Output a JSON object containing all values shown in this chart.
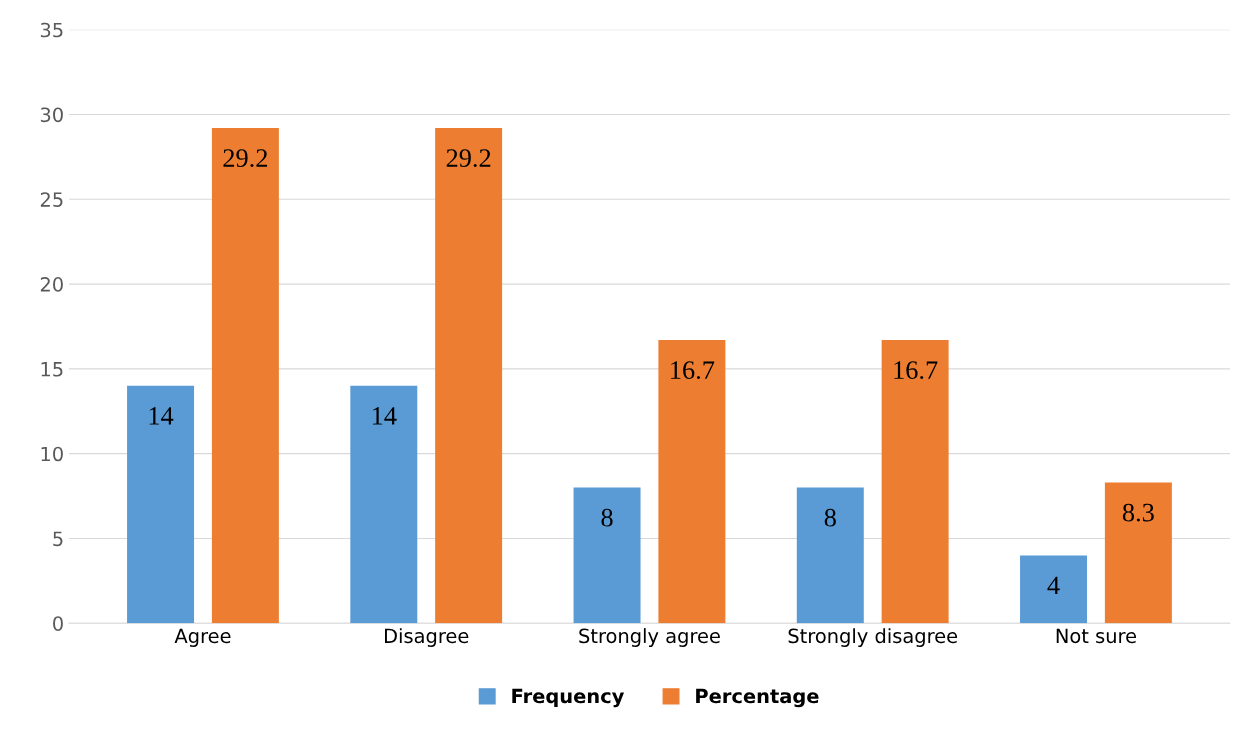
{
  "chart_data": {
    "type": "bar",
    "categories": [
      "Agree",
      "Disagree",
      "Strongly agree",
      "Strongly disagree",
      "Not sure"
    ],
    "series": [
      {
        "name": "Frequency",
        "color": "#5b9bd5",
        "values": [
          14,
          14,
          8,
          8,
          4
        ]
      },
      {
        "name": "Percentage",
        "color": "#ed7d31",
        "values": [
          29.2,
          29.2,
          16.7,
          16.7,
          8.3
        ]
      }
    ],
    "ylim": [
      0,
      35
    ],
    "yticks": [
      0,
      5,
      10,
      15,
      20,
      25,
      30,
      35
    ],
    "grid": "y",
    "legend": "bottom",
    "data_labels": true
  }
}
